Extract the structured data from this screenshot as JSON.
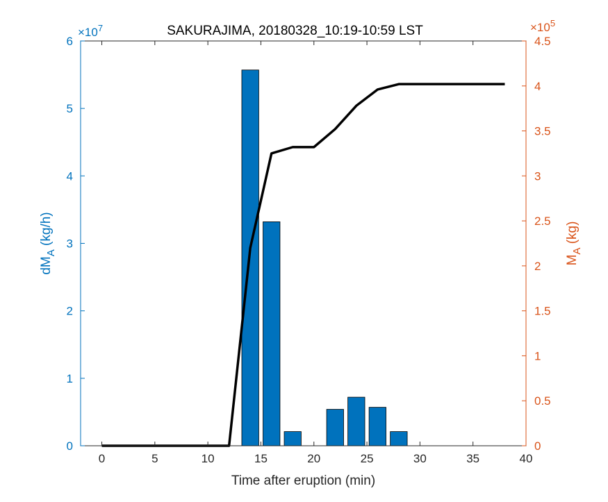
{
  "chart_data": {
    "type": "bar",
    "title": "SAKURAJIMA, 20180328_10:19-10:59 LST",
    "xlabel": "Time after eruption (min)",
    "xlim": [
      -2,
      40
    ],
    "xticks": [
      0,
      5,
      10,
      15,
      20,
      25,
      30,
      35,
      40
    ],
    "left_axis": {
      "label_main": "dM",
      "label_sub": "A",
      "label_unit": " (kg/h)",
      "exponent_text": "×10",
      "exponent_power": "7",
      "ylim": [
        0,
        6
      ],
      "ticks": [
        0,
        1,
        2,
        3,
        4,
        5,
        6
      ],
      "color": "#0072BD"
    },
    "right_axis": {
      "label_main": "M",
      "label_sub": "A",
      "label_unit": " (kg)",
      "exponent_text": "×10",
      "exponent_power": "5",
      "ylim": [
        0,
        4.5
      ],
      "ticks": [
        0,
        0.5,
        1,
        1.5,
        2,
        2.5,
        3,
        3.5,
        4,
        4.5
      ],
      "color": "#D95319"
    },
    "series": [
      {
        "kind": "bar",
        "axis": "left",
        "color": "#0072BD",
        "x": [
          14,
          16,
          18,
          22,
          24,
          26,
          28
        ],
        "values": [
          5.57,
          3.32,
          0.21,
          0.54,
          0.72,
          0.57,
          0.21
        ]
      },
      {
        "kind": "line",
        "axis": "right",
        "color": "#000000",
        "x": [
          0,
          2,
          4,
          6,
          8,
          10,
          12,
          14,
          16,
          18,
          20,
          22,
          24,
          26,
          28,
          30,
          32,
          34,
          36,
          38
        ],
        "values": [
          0,
          0,
          0,
          0,
          0,
          0,
          0,
          2.2,
          3.25,
          3.32,
          3.32,
          3.52,
          3.78,
          3.96,
          4.02,
          4.02,
          4.02,
          4.02,
          4.02,
          4.02
        ]
      }
    ],
    "bar_width": 1.6,
    "grid": false
  }
}
